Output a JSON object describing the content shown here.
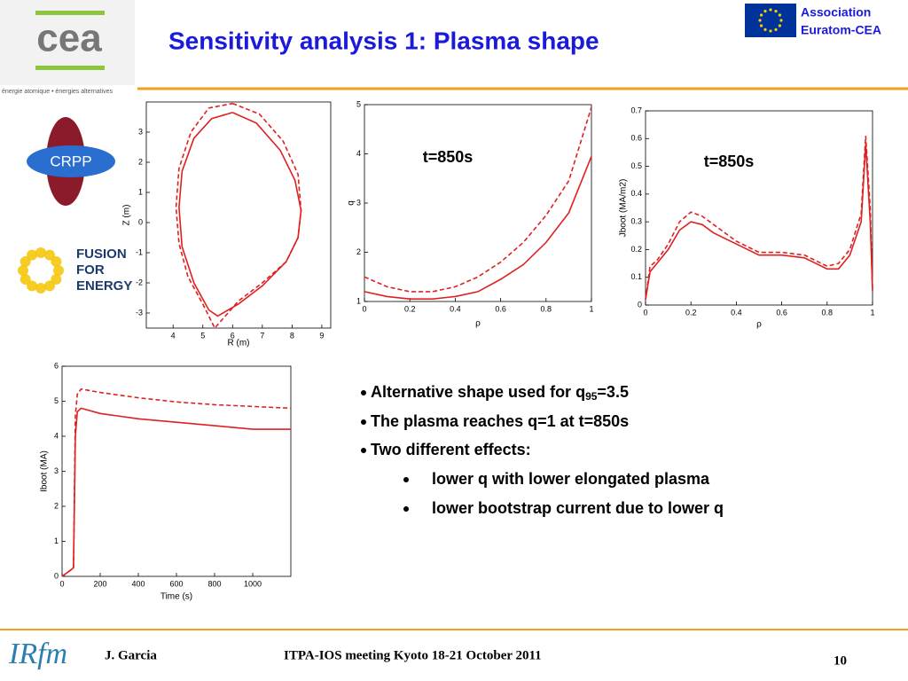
{
  "header": {
    "title": "Sensitivity analysis 1: Plasma shape",
    "association": [
      "Association",
      "Euratom-CEA"
    ],
    "cea_logo": "cea",
    "cea_tagline": "énergie atomique • énergies alternatives"
  },
  "logos": {
    "crpp": "CRPP",
    "f4e": [
      "FUSION",
      "FOR",
      "ENERGY"
    ],
    "irfm": "IRfm"
  },
  "charts": [
    {
      "type": "line",
      "xlabel": "R (m)",
      "ylabel": "Z (m)",
      "xlim": [
        3.1,
        9.3
      ],
      "ylim": [
        -3.5,
        4
      ],
      "xticks": [
        4,
        5,
        6,
        7,
        8,
        9
      ],
      "yticks": [
        -3,
        -2,
        -1,
        0,
        1,
        2,
        3
      ],
      "series": [
        {
          "color": "#e02020",
          "dash": false,
          "x": [
            6.0,
            6.8,
            7.6,
            8.1,
            8.3,
            8.2,
            7.8,
            7.0,
            6.2,
            5.5,
            5.2,
            4.7,
            4.3,
            4.2,
            4.3,
            4.7,
            5.3,
            6.0
          ],
          "values": [
            3.65,
            3.3,
            2.4,
            1.4,
            0.4,
            -0.5,
            -1.3,
            -2.1,
            -2.7,
            -3.1,
            -2.9,
            -2.0,
            -0.8,
            0.5,
            1.7,
            2.8,
            3.45,
            3.65
          ]
        },
        {
          "color": "#e02020",
          "dash": true,
          "x": [
            6.0,
            6.9,
            7.7,
            8.2,
            8.3,
            8.2,
            7.8,
            7.0,
            6.2,
            5.4,
            5.0,
            4.5,
            4.2,
            4.1,
            4.2,
            4.6,
            5.2,
            6.0
          ],
          "values": [
            3.95,
            3.6,
            2.7,
            1.6,
            0.4,
            -0.5,
            -1.3,
            -2.0,
            -2.6,
            -3.5,
            -2.7,
            -1.8,
            -0.7,
            0.5,
            1.8,
            3.0,
            3.8,
            3.95
          ]
        }
      ]
    },
    {
      "type": "line",
      "xlabel": "ρ",
      "ylabel": "q",
      "annotation": "t=850s",
      "xlim": [
        0,
        1
      ],
      "ylim": [
        1,
        5
      ],
      "xticks": [
        0,
        0.2,
        0.4,
        0.6,
        0.8,
        1
      ],
      "yticks": [
        1,
        2,
        3,
        4,
        5
      ],
      "x": [
        0,
        0.1,
        0.2,
        0.3,
        0.4,
        0.5,
        0.6,
        0.7,
        0.8,
        0.9,
        1
      ],
      "series": [
        {
          "color": "#e02020",
          "dash": false,
          "values": [
            1.2,
            1.1,
            1.05,
            1.05,
            1.1,
            1.2,
            1.45,
            1.75,
            2.2,
            2.8,
            3.95
          ]
        },
        {
          "color": "#e02020",
          "dash": true,
          "values": [
            1.5,
            1.3,
            1.2,
            1.2,
            1.3,
            1.5,
            1.8,
            2.2,
            2.75,
            3.45,
            4.95
          ]
        }
      ]
    },
    {
      "type": "line",
      "xlabel": "ρ",
      "ylabel": "Jboot (MA/m2)",
      "annotation": "t=850s",
      "xlim": [
        0,
        1
      ],
      "ylim": [
        0,
        0.7
      ],
      "xticks": [
        0,
        0.2,
        0.4,
        0.6,
        0.8,
        1
      ],
      "yticks": [
        0,
        0.1,
        0.2,
        0.3,
        0.4,
        0.5,
        0.6,
        0.7
      ],
      "x": [
        0,
        0.02,
        0.05,
        0.1,
        0.15,
        0.2,
        0.25,
        0.3,
        0.4,
        0.5,
        0.6,
        0.7,
        0.8,
        0.85,
        0.9,
        0.95,
        0.97,
        0.99,
        1
      ],
      "series": [
        {
          "color": "#e02020",
          "dash": false,
          "values": [
            0.02,
            0.12,
            0.15,
            0.2,
            0.27,
            0.3,
            0.29,
            0.26,
            0.22,
            0.18,
            0.18,
            0.17,
            0.13,
            0.13,
            0.18,
            0.3,
            0.58,
            0.3,
            0.05
          ]
        },
        {
          "color": "#e02020",
          "dash": true,
          "values": [
            0.02,
            0.14,
            0.16,
            0.22,
            0.3,
            0.335,
            0.32,
            0.29,
            0.23,
            0.19,
            0.19,
            0.18,
            0.14,
            0.15,
            0.2,
            0.33,
            0.61,
            0.35,
            0.05
          ]
        }
      ]
    },
    {
      "type": "line",
      "xlabel": "Time (s)",
      "ylabel": "Iboot (MA)",
      "xlim": [
        0,
        1200
      ],
      "ylim": [
        0,
        6
      ],
      "xticks": [
        0,
        200,
        400,
        600,
        800,
        1000
      ],
      "yticks": [
        0,
        1,
        2,
        3,
        4,
        5,
        6
      ],
      "x": [
        0,
        50,
        60,
        70,
        80,
        100,
        200,
        400,
        600,
        800,
        1000,
        1200
      ],
      "series": [
        {
          "color": "#e02020",
          "dash": false,
          "values": [
            0,
            0.2,
            0.25,
            4.0,
            4.7,
            4.8,
            4.65,
            4.5,
            4.4,
            4.3,
            4.2,
            4.2
          ]
        },
        {
          "color": "#e02020",
          "dash": true,
          "values": [
            0,
            0.2,
            0.25,
            4.6,
            5.2,
            5.35,
            5.25,
            5.1,
            4.98,
            4.9,
            4.85,
            4.8
          ]
        }
      ]
    }
  ],
  "bullets": [
    {
      "parts": [
        "Alternative shape used for q",
        "95",
        "=3.5"
      ]
    },
    {
      "text": "The plasma reaches q=1 at t=850s"
    },
    {
      "text": "Two different effects:"
    },
    {
      "text": "lower q with lower elongated plasma",
      "indent": true
    },
    {
      "text": "lower bootstrap current due to lower q",
      "indent": true
    }
  ],
  "footer": {
    "author": "J. Garcia",
    "meeting": "ITPA-IOS meeting Kyoto 18-21 October 2011",
    "page": "10"
  }
}
